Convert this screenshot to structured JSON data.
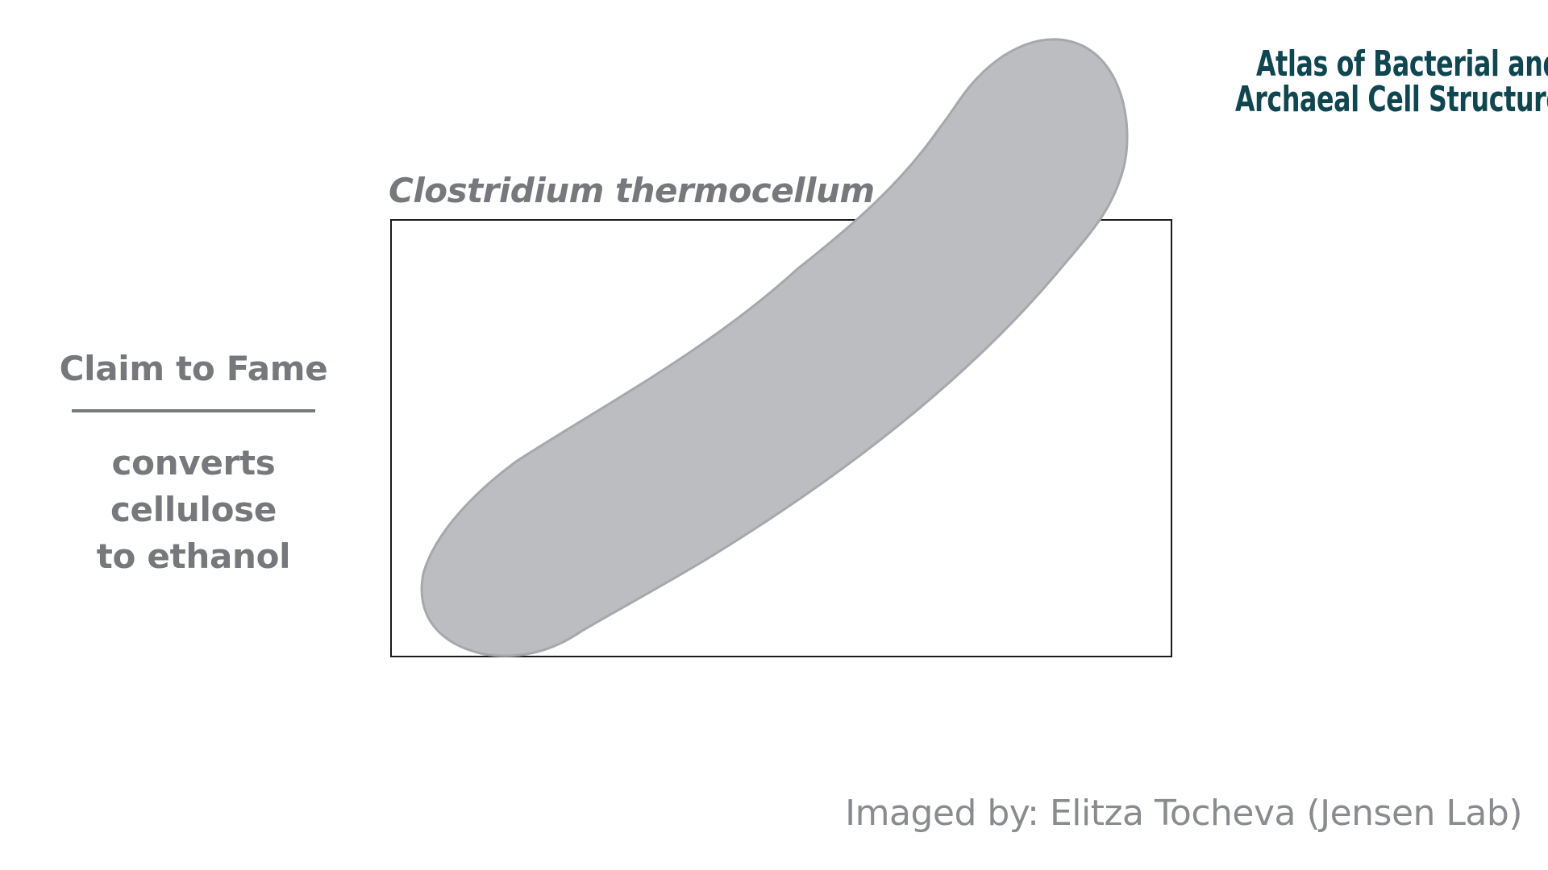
{
  "logo": {
    "line1": "Atlas of Bacterial and",
    "line2": "Archaeal Cell Structure"
  },
  "species": {
    "name": "Clostridium thermocellum"
  },
  "claim": {
    "heading": "Claim to Fame",
    "line1": "converts cellulose",
    "line2": "to ethanol"
  },
  "credit": {
    "text": "Imaged by: Elitza Tocheva (Jensen Lab)"
  },
  "colors": {
    "logo": "#0f4650",
    "text_gray": "#77787b",
    "cell_fill": "#bcbdc0",
    "cell_stroke": "#a7a8ab",
    "frame": "#1a1a1a"
  }
}
